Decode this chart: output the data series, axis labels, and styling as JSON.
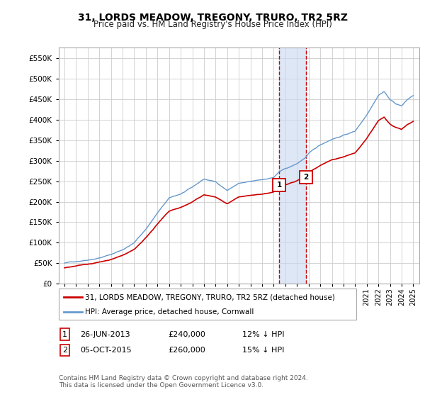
{
  "title": "31, LORDS MEADOW, TREGONY, TRURO, TR2 5RZ",
  "subtitle": "Price paid vs. HM Land Registry's House Price Index (HPI)",
  "ylabel_vals": [
    0,
    50000,
    100000,
    150000,
    200000,
    250000,
    300000,
    350000,
    400000,
    450000,
    500000,
    550000
  ],
  "ylabel_labels": [
    "£0",
    "£50K",
    "£100K",
    "£150K",
    "£200K",
    "£250K",
    "£300K",
    "£350K",
    "£400K",
    "£450K",
    "£500K",
    "£550K"
  ],
  "ylim": [
    0,
    575000
  ],
  "xlim_start": 1994.5,
  "xlim_end": 2025.5,
  "transaction1_x": 2013.486,
  "transaction1_y": 240000,
  "transaction1_label": "1",
  "transaction2_x": 2015.753,
  "transaction2_y": 260000,
  "transaction2_label": "2",
  "shade_color": "#c8d8f0",
  "shade_alpha": 0.6,
  "vline_color": "#cc0000",
  "vline_style": "--",
  "property_line_color": "#cc0000",
  "hpi_line_color": "#6699cc",
  "marker_box_color": "#cc0000",
  "legend_label1": "31, LORDS MEADOW, TREGONY, TRURO, TR2 5RZ (detached house)",
  "legend_label2": "HPI: Average price, detached house, Cornwall",
  "footer1": "Contains HM Land Registry data © Crown copyright and database right 2024.",
  "footer2": "This data is licensed under the Open Government Licence v3.0.",
  "table_row1": [
    "1",
    "26-JUN-2013",
    "£240,000",
    "12% ↓ HPI"
  ],
  "table_row2": [
    "2",
    "05-OCT-2015",
    "£260,000",
    "15% ↓ HPI"
  ],
  "background_color": "#ffffff",
  "grid_color": "#cccccc",
  "hpi_points": [
    [
      1995.0,
      50000
    ],
    [
      1996.0,
      54000
    ],
    [
      1997.0,
      59000
    ],
    [
      1998.0,
      65000
    ],
    [
      1999.0,
      73000
    ],
    [
      2000.0,
      85000
    ],
    [
      2001.0,
      102000
    ],
    [
      2002.0,
      135000
    ],
    [
      2003.0,
      175000
    ],
    [
      2004.0,
      210000
    ],
    [
      2005.0,
      220000
    ],
    [
      2006.0,
      235000
    ],
    [
      2007.0,
      255000
    ],
    [
      2008.0,
      248000
    ],
    [
      2009.0,
      228000
    ],
    [
      2010.0,
      245000
    ],
    [
      2011.0,
      248000
    ],
    [
      2012.0,
      252000
    ],
    [
      2013.0,
      258000
    ],
    [
      2013.486,
      272000
    ],
    [
      2014.0,
      278000
    ],
    [
      2015.0,
      290000
    ],
    [
      2015.753,
      306000
    ],
    [
      2016.0,
      315000
    ],
    [
      2017.0,
      335000
    ],
    [
      2018.0,
      350000
    ],
    [
      2019.0,
      360000
    ],
    [
      2020.0,
      370000
    ],
    [
      2021.0,
      410000
    ],
    [
      2022.0,
      460000
    ],
    [
      2022.5,
      470000
    ],
    [
      2023.0,
      450000
    ],
    [
      2023.5,
      440000
    ],
    [
      2024.0,
      435000
    ],
    [
      2024.5,
      450000
    ],
    [
      2025.0,
      460000
    ]
  ],
  "prop_points": [
    [
      1995.0,
      43000
    ],
    [
      1996.0,
      46500
    ],
    [
      1997.0,
      50800
    ],
    [
      1998.0,
      56000
    ],
    [
      1999.0,
      62900
    ],
    [
      2000.0,
      73200
    ],
    [
      2001.0,
      87900
    ],
    [
      2002.0,
      116400
    ],
    [
      2003.0,
      150800
    ],
    [
      2004.0,
      181000
    ],
    [
      2005.0,
      189700
    ],
    [
      2006.0,
      202600
    ],
    [
      2007.0,
      219800
    ],
    [
      2008.0,
      213900
    ],
    [
      2009.0,
      196600
    ],
    [
      2010.0,
      211200
    ],
    [
      2011.0,
      213800
    ],
    [
      2012.0,
      217300
    ],
    [
      2013.0,
      222300
    ],
    [
      2013.486,
      240000
    ],
    [
      2014.0,
      239700
    ],
    [
      2015.0,
      250000
    ],
    [
      2015.753,
      260000
    ],
    [
      2016.0,
      268000
    ],
    [
      2017.0,
      285000
    ],
    [
      2018.0,
      298000
    ],
    [
      2019.0,
      306000
    ],
    [
      2020.0,
      315000
    ],
    [
      2021.0,
      349000
    ],
    [
      2022.0,
      391000
    ],
    [
      2022.5,
      400000
    ],
    [
      2023.0,
      383000
    ],
    [
      2023.5,
      374000
    ],
    [
      2024.0,
      370000
    ],
    [
      2024.5,
      382000
    ],
    [
      2025.0,
      390000
    ]
  ]
}
